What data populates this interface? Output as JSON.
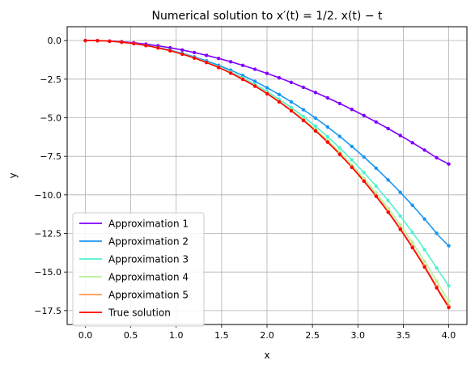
{
  "chart_data": {
    "type": "line",
    "title": "Numerical solution to  x′(t) = 1/2. x(t) − t",
    "xlabel": "x",
    "ylabel": "y",
    "xlim": [
      -0.2,
      4.2
    ],
    "ylim": [
      -18.4,
      0.9
    ],
    "xticks": [
      0.0,
      0.5,
      1.0,
      1.5,
      2.0,
      2.5,
      3.0,
      3.5,
      4.0
    ],
    "xtick_labels": [
      "0.0",
      "0.5",
      "1.0",
      "1.5",
      "2.0",
      "2.5",
      "3.0",
      "3.5",
      "4.0"
    ],
    "yticks": [
      0.0,
      -2.5,
      -5.0,
      -7.5,
      -10.0,
      -12.5,
      -15.0,
      -17.5
    ],
    "ytick_labels": [
      "0.0",
      "−2.5",
      "−5.0",
      "−7.5",
      "−10.0",
      "−12.5",
      "−15.0",
      "−17.5"
    ],
    "grid": true,
    "legend_position": "lower-left",
    "x_range": [
      0,
      4
    ],
    "marker_points": 30,
    "series": [
      {
        "name": "Approximation 1",
        "color": "#8000ff",
        "values": [
          0.0,
          -0.0,
          -0.018,
          -0.052,
          -0.102,
          -0.167,
          -0.246,
          -0.339,
          -0.446,
          -0.567,
          -0.701,
          -0.849,
          -1.011,
          -1.185,
          -1.372,
          -1.571,
          -1.783,
          -2.008,
          -2.245,
          -2.494,
          -2.755,
          -3.028,
          -3.313,
          -3.61,
          -3.919,
          -4.24,
          -4.573,
          -4.918,
          -5.274,
          -5.643,
          -6.023,
          -6.414,
          -6.818,
          -7.234,
          -7.661,
          -8.0
        ]
      },
      {
        "name": "Approximation 2",
        "color": "#1996f3",
        "values": [
          0.0,
          -0.0,
          -0.018,
          -0.053,
          -0.105,
          -0.173,
          -0.258,
          -0.358,
          -0.475,
          -0.609,
          -0.759,
          -0.926,
          -1.11,
          -1.311,
          -1.53,
          -1.766,
          -2.02,
          -2.293,
          -2.583,
          -2.892,
          -3.22,
          -3.567,
          -3.933,
          -4.318,
          -4.724,
          -5.15,
          -5.597,
          -6.065,
          -6.554,
          -7.065,
          -7.598,
          -8.153,
          -8.732,
          -9.333,
          -9.958,
          -10.607,
          -11.281,
          -11.98,
          -12.704,
          -13.3
        ]
      },
      {
        "name": "Approximation 3",
        "color": "#4df3ce",
        "values": [
          0.0,
          -0.0,
          -0.018,
          -0.054,
          -0.106,
          -0.176,
          -0.263,
          -0.367,
          -0.489,
          -0.629,
          -0.788,
          -0.965,
          -1.162,
          -1.378,
          -1.614,
          -1.872,
          -2.15,
          -2.451,
          -2.773,
          -3.118,
          -3.487,
          -3.88,
          -4.298,
          -4.741,
          -5.21,
          -5.706,
          -6.23,
          -6.783,
          -7.365,
          -7.977,
          -8.62,
          -9.295,
          -10.004,
          -10.746,
          -11.524,
          -12.338,
          -13.19,
          -14.081,
          -15.012,
          -15.9
        ]
      },
      {
        "name": "Approximation 4",
        "color": "#b2f396",
        "values": [
          0.0,
          -0.0,
          -0.018,
          -0.054,
          -0.107,
          -0.177,
          -0.265,
          -0.371,
          -0.495,
          -0.638,
          -0.8,
          -0.982,
          -1.184,
          -1.406,
          -1.65,
          -1.915,
          -2.203,
          -2.514,
          -2.848,
          -3.207,
          -3.591,
          -4.001,
          -4.438,
          -4.902,
          -5.395,
          -5.918,
          -6.471,
          -7.055,
          -7.672,
          -8.322,
          -9.008,
          -9.729,
          -10.487,
          -11.284,
          -12.12,
          -12.998,
          -13.918,
          -14.882,
          -15.892,
          -16.9
        ]
      },
      {
        "name": "Approximation 5",
        "color": "#ff964f",
        "values": [
          0.0,
          -0.0,
          -0.018,
          -0.054,
          -0.107,
          -0.177,
          -0.266,
          -0.372,
          -0.497,
          -0.641,
          -0.804,
          -0.987,
          -1.19,
          -1.415,
          -1.661,
          -1.929,
          -2.22,
          -2.534,
          -2.873,
          -3.236,
          -3.625,
          -4.041,
          -4.484,
          -4.956,
          -5.457,
          -5.989,
          -6.553,
          -7.149,
          -7.779,
          -8.445,
          -9.147,
          -9.886,
          -10.665,
          -11.485,
          -12.347,
          -13.252,
          -14.203,
          -15.201,
          -16.248,
          -17.2
        ]
      },
      {
        "name": "True solution",
        "color": "#ff0000",
        "values": [
          0.0,
          -0.0,
          -0.018,
          -0.054,
          -0.107,
          -0.178,
          -0.267,
          -0.373,
          -0.498,
          -0.642,
          -0.806,
          -0.989,
          -1.193,
          -1.418,
          -1.665,
          -1.934,
          -2.227,
          -2.542,
          -2.882,
          -3.247,
          -3.638,
          -4.056,
          -4.501,
          -4.975,
          -5.479,
          -6.013,
          -6.58,
          -7.179,
          -7.812,
          -8.481,
          -9.187,
          -9.93,
          -10.714,
          -11.538,
          -12.405,
          -13.316,
          -14.272,
          -15.277,
          -16.331,
          -17.3
        ]
      }
    ]
  }
}
